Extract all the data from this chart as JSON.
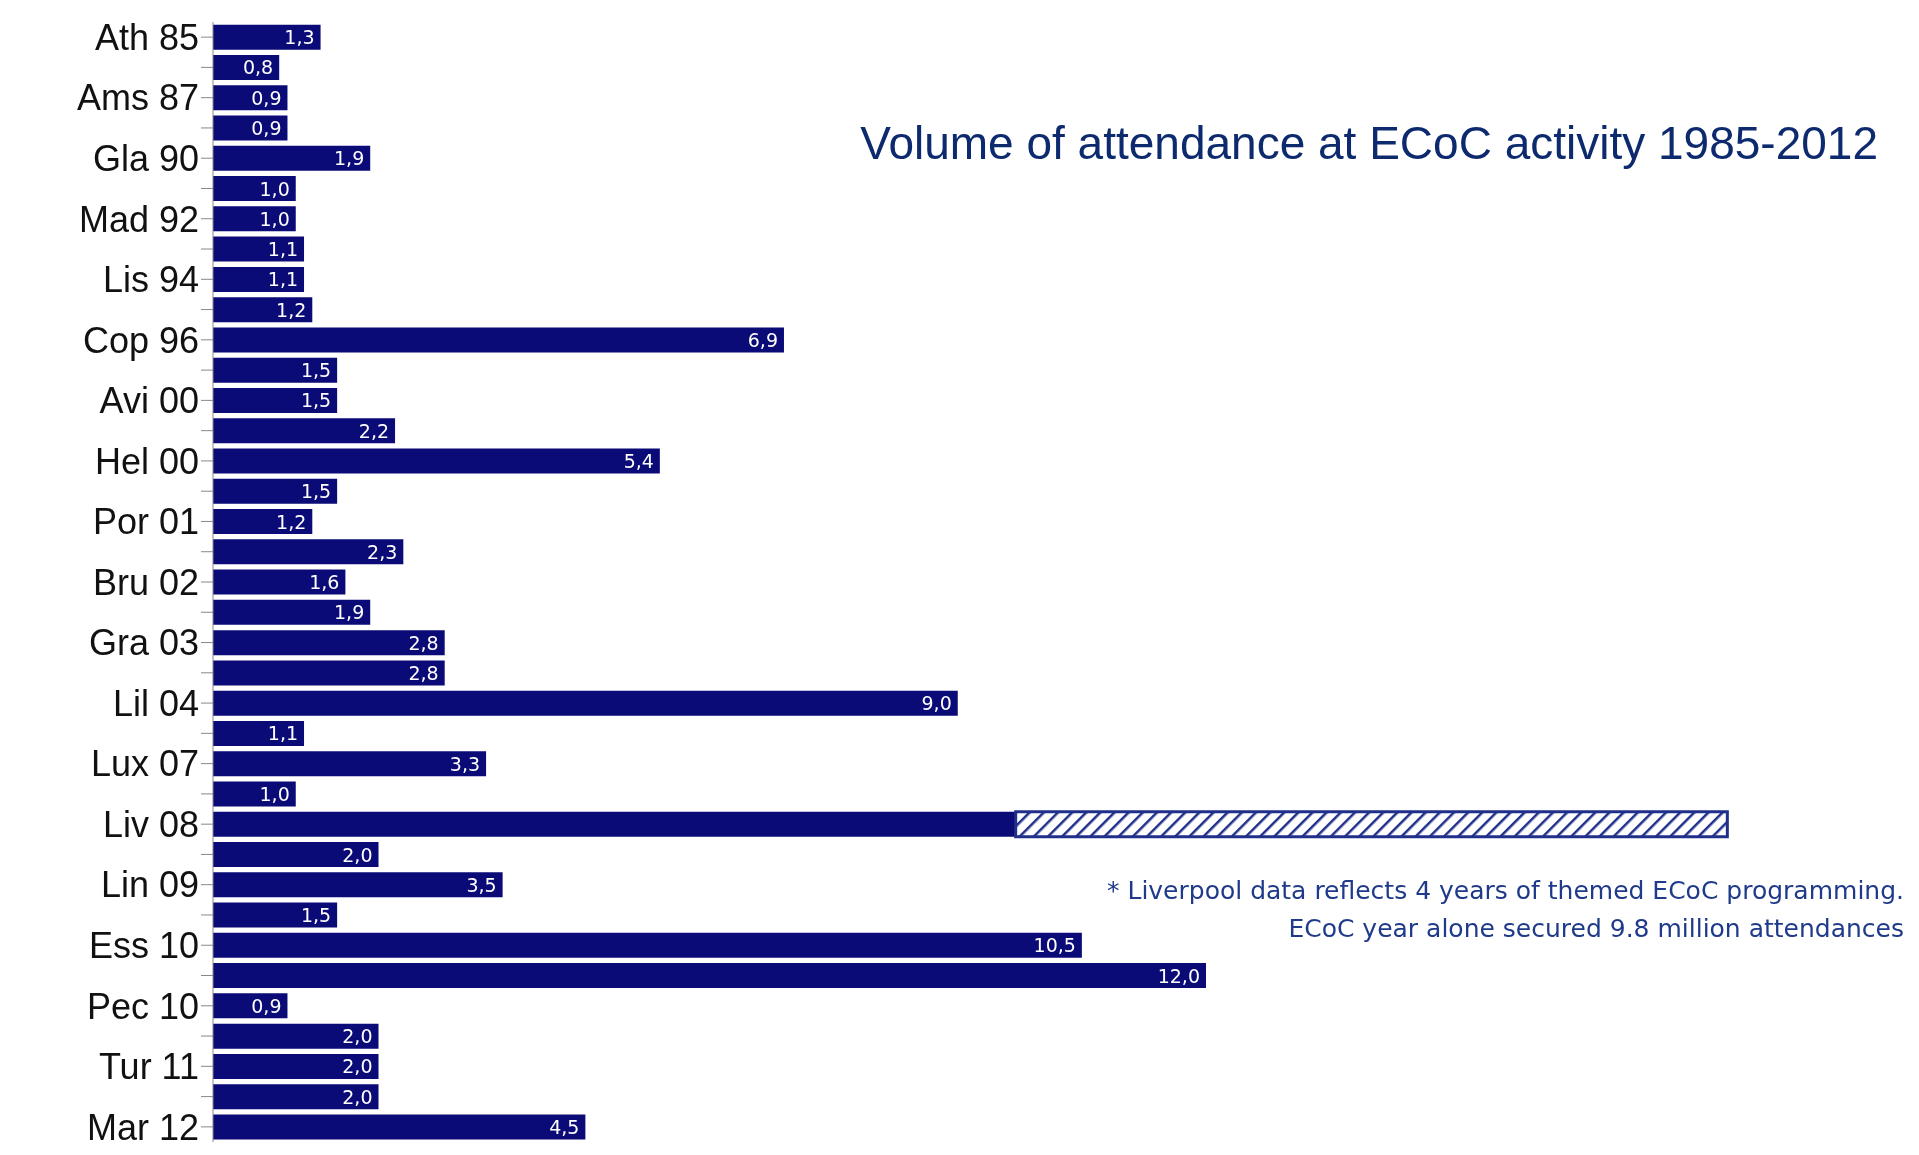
{
  "chart_data": {
    "type": "bar",
    "orientation": "horizontal",
    "stacked": true,
    "title": "Volume of attendance at ECoC activity 1985-2012",
    "categories": [
      "Ath 85",
      null,
      "Ams 87",
      null,
      "Gla 90",
      null,
      "Mad 92",
      null,
      "Lis 94",
      null,
      "Cop 96",
      null,
      "Avi 00",
      null,
      "Hel 00",
      null,
      "Por 01",
      null,
      "Bru 02",
      null,
      "Gra 03",
      null,
      "Lil 04",
      null,
      "Lux 07",
      null,
      "Liv 08",
      null,
      "Lin 09",
      null,
      "Ess 10",
      null,
      "Pec 10",
      null,
      "Tur 11",
      null,
      "Mar 12"
    ],
    "series": [
      {
        "color": "#0b0b78",
        "values": [
          1.3,
          0.8,
          0.9,
          0.9,
          1.9,
          1.0,
          1.0,
          1.1,
          1.1,
          1.2,
          6.9,
          1.5,
          1.5,
          2.2,
          5.4,
          1.5,
          1.2,
          2.3,
          1.6,
          1.9,
          2.8,
          2.8,
          9.0,
          1.1,
          3.3,
          1.0,
          9.7,
          2.0,
          3.5,
          1.5,
          10.5,
          12.0,
          0.9,
          2.0,
          2.0,
          2.0,
          4.5
        ],
        "value_labels": [
          "1,3",
          "0,8",
          "0,9",
          "0,9",
          "1,9",
          "1,0",
          "1,0",
          "1,1",
          "1,1",
          "1,2",
          "6,9",
          "1,5",
          "1,5",
          "2,2",
          "5,4",
          "1,5",
          "1,2",
          "2,3",
          "1,6",
          "1,9",
          "2,8",
          "2,8",
          "9,0",
          "1,1",
          "3,3",
          "1,0",
          null,
          "2,0",
          "3,5",
          "1,5",
          "10,5",
          "12,0",
          "0,9",
          "2,0",
          "2,0",
          "2,0",
          "4,5"
        ]
      },
      {
        "color": "#1f2f8a",
        "values": [
          null,
          null,
          null,
          null,
          null,
          null,
          null,
          null,
          null,
          null,
          null,
          null,
          null,
          null,
          null,
          null,
          null,
          null,
          null,
          null,
          null,
          null,
          null,
          null,
          null,
          null,
          8.6,
          null,
          null,
          null,
          null,
          null,
          null,
          null,
          null,
          null,
          null
        ]
      }
    ],
    "tick_labels": "y",
    "annotations": [
      "* Liverpool data reflects 4 years of themed ECoC programming.",
      "ECoC year alone secured 9.8 million attendances"
    ]
  }
}
